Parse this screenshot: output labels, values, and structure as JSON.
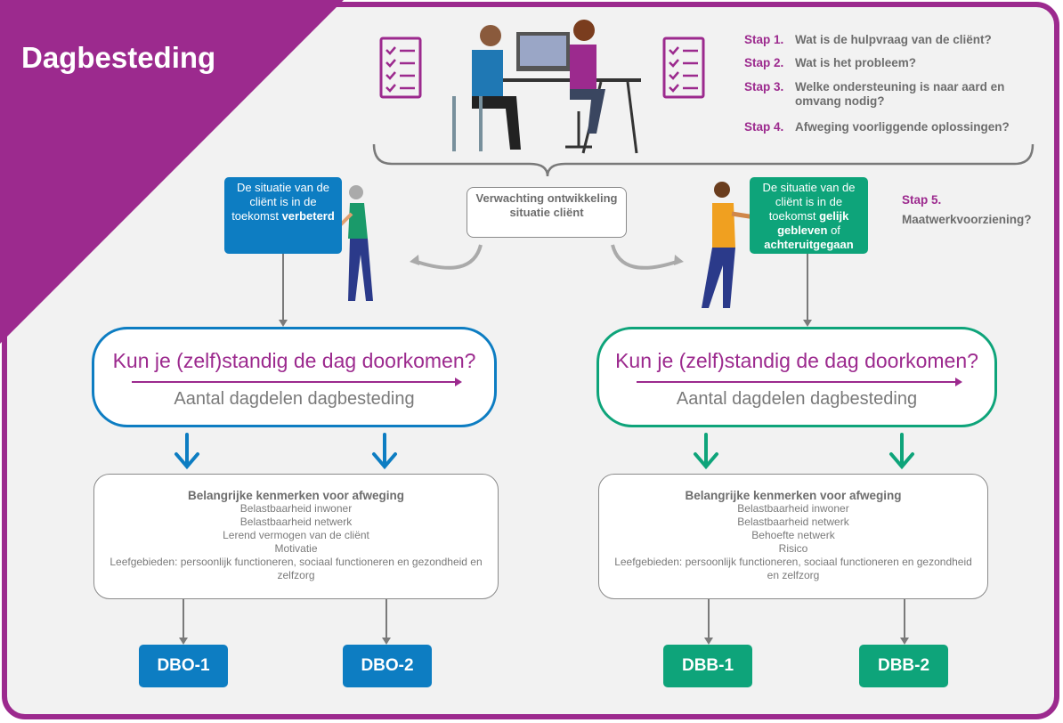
{
  "title": "Dagbesteding",
  "colors": {
    "purple": "#9c2a8e",
    "blue": "#0d7dc2",
    "green": "#0ea47a",
    "gray": "#6d6d6d"
  },
  "steps": [
    {
      "label": "Stap 1.",
      "text": "Wat is de hulpvraag van de cliënt?"
    },
    {
      "label": "Stap 2.",
      "text": "Wat is het probleem?"
    },
    {
      "label": "Stap 3.",
      "text": "Welke ondersteuning is naar aard en omvang nodig?"
    },
    {
      "label": "Stap 4.",
      "text": "Afweging voorliggende oplossingen?"
    }
  ],
  "step5": {
    "label": "Stap 5.",
    "text": "Maatwerkvoorziening?"
  },
  "center_box": "Verwachting ontwikkeling situatie cliënt",
  "left_callout": {
    "text": "De situatie van de cliënt is in de toekomst",
    "bold": "verbeterd"
  },
  "right_callout": {
    "text1": "De situatie van de cliënt is in de toekomst",
    "bold1": "gelijk gebleven",
    "text2": "of",
    "bold2": "achteruitgegaan"
  },
  "question": {
    "title": "Kun je (zelf)standig de dag doorkomen?",
    "subtitle": "Aantal dagdelen dagbesteding"
  },
  "left_criteria": {
    "heading": "Belangrijke kenmerken voor afweging",
    "items": [
      "Belastbaarheid inwoner",
      "Belastbaarheid netwerk",
      "Lerend vermogen van de cliënt",
      "Motivatie",
      "Leefgebieden: persoonlijk functioneren, sociaal functioneren en gezondheid en zelfzorg"
    ]
  },
  "right_criteria": {
    "heading": "Belangrijke kenmerken voor afweging",
    "items": [
      "Belastbaarheid inwoner",
      "Belastbaarheid netwerk",
      "Behoefte netwerk",
      "Risico",
      "Leefgebieden: persoonlijk functioneren, sociaal functioneren en gezondheid en zelfzorg"
    ]
  },
  "results": [
    "DBO-1",
    "DBO-2",
    "DBB-1",
    "DBB-2"
  ]
}
